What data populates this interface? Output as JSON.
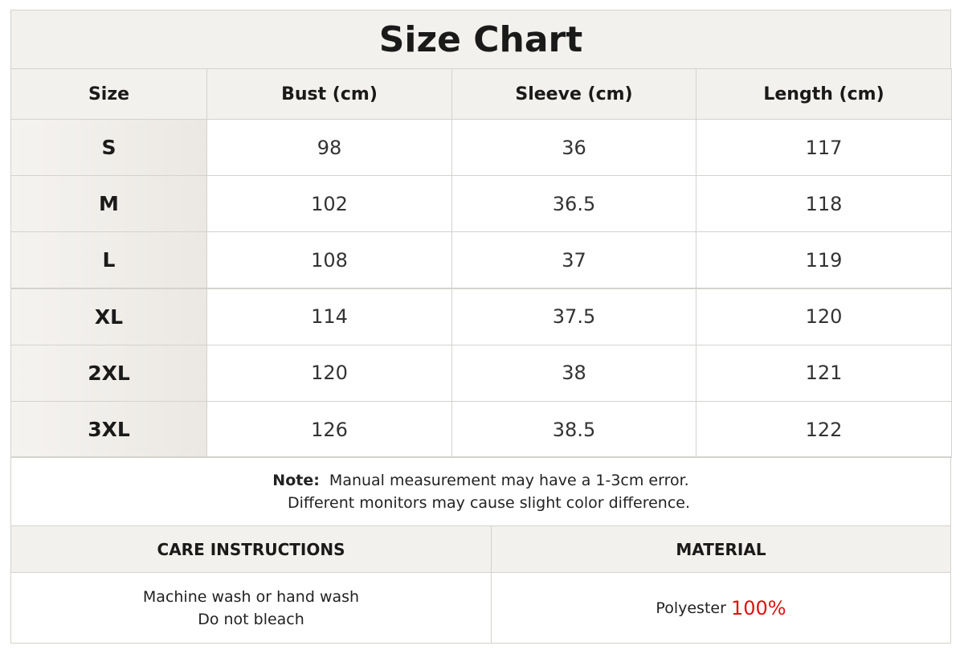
{
  "title": "Size Chart",
  "table": {
    "header": [
      "Size",
      "Bust (cm)",
      "Sleeve (cm)",
      "Length (cm)"
    ],
    "rows": [
      [
        "S",
        98,
        36,
        117
      ],
      [
        "M",
        102,
        36.5,
        118
      ],
      [
        "L",
        108,
        37,
        119
      ],
      [
        "XL",
        114,
        37.5,
        120
      ],
      [
        "2XL",
        120,
        38,
        121
      ],
      [
        "3XL",
        126,
        38.5,
        122
      ]
    ]
  },
  "note": {
    "label": "Note:",
    "lines": [
      "Manual measurement may have a 1-3cm error.",
      "Different monitors may cause slight color difference."
    ]
  },
  "care": {
    "heading": "CARE INSTRUCTIONS",
    "lines": [
      "Machine wash or hand wash",
      "Do not bleach"
    ]
  },
  "material": {
    "heading": "MATERIAL",
    "name": "Polyester",
    "amount": "100%"
  }
}
